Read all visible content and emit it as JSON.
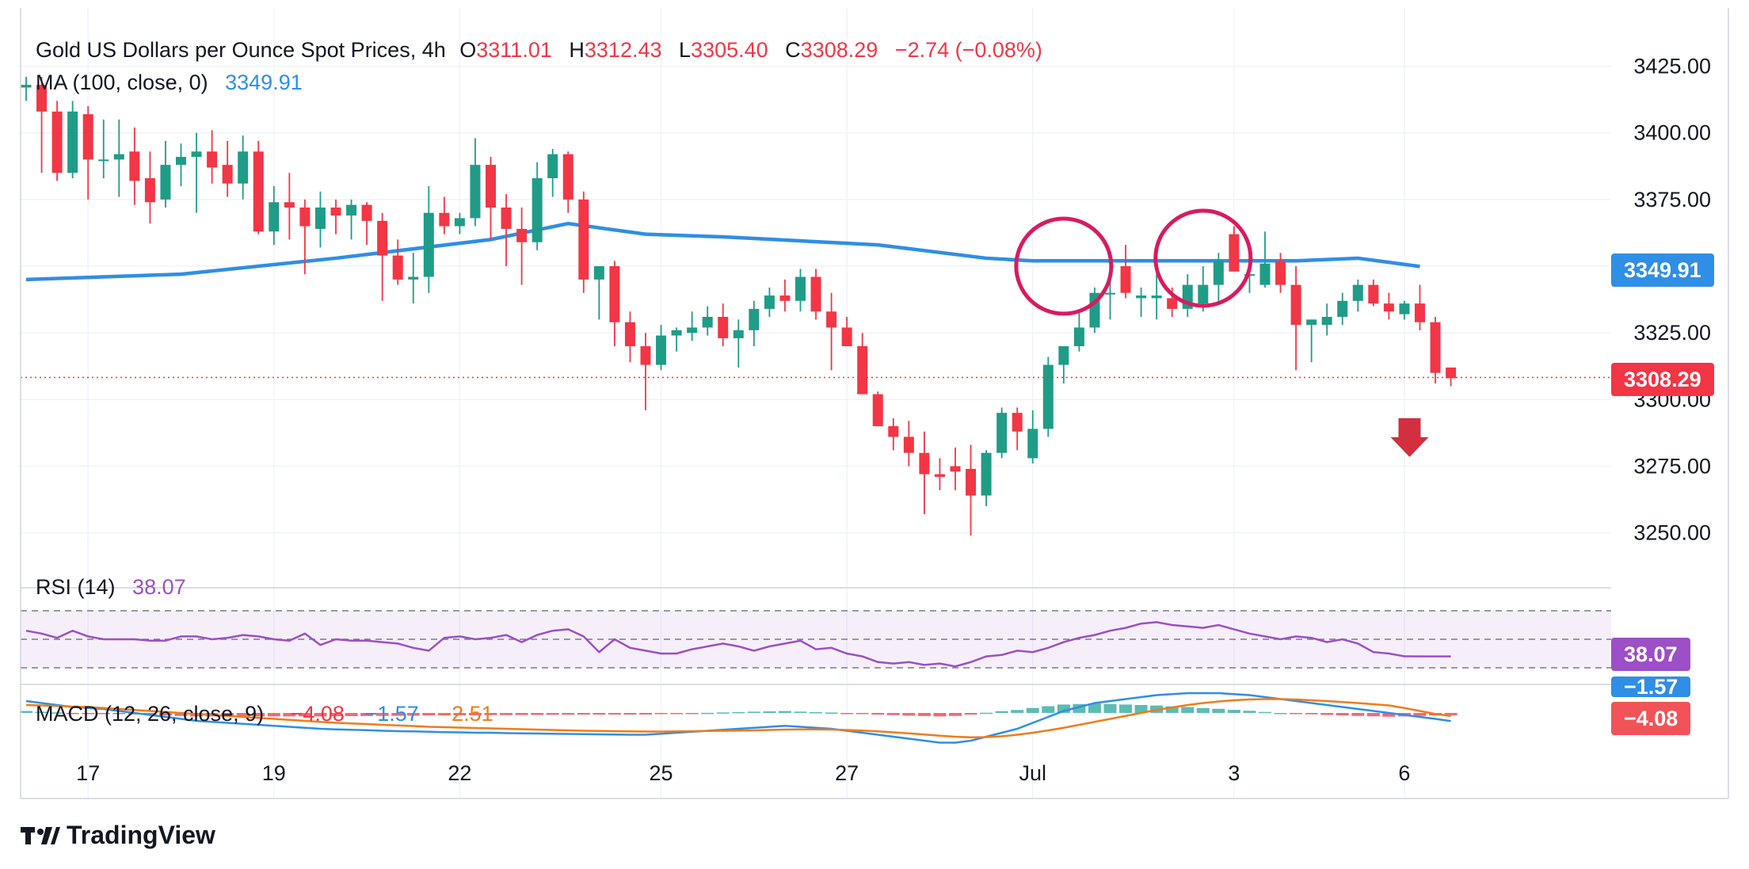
{
  "header": {
    "symbol": "Gold US Dollars per Ounce Spot Prices, 4h",
    "o_label": "O",
    "o_value": "3311.01",
    "h_label": "H",
    "h_value": "3312.43",
    "l_label": "L",
    "l_value": "3305.40",
    "c_label": "C",
    "c_value": "3308.29",
    "change": "−2.74 (−0.08%)"
  },
  "ma_legend": {
    "label": "MA (100, close, 0)",
    "value": "3349.91"
  },
  "rsi_legend": {
    "label": "RSI (14)",
    "value": "38.07"
  },
  "macd_legend": {
    "label": "MACD (12, 26, close, 9)",
    "macd": "−4.08",
    "signal": "−1.57",
    "hist": "−2.51"
  },
  "badges": {
    "ma": "3349.91",
    "price": "3308.29",
    "rsi": "38.07",
    "macd_signal": "−1.57",
    "macd": "−4.08"
  },
  "brand": "TradingView",
  "colors": {
    "up": "#26a69a",
    "upBody": "#1f9c87",
    "down": "#f23645",
    "ma": "#2f8ee5",
    "rsi": "#9c4fc6",
    "macd": "#2f8ee5",
    "signal": "#f07c1a",
    "circle": "#d81b60",
    "arrow": "#d32f3f"
  },
  "chart_data": [
    {
      "type": "candlestick",
      "title": "Gold US Dollars per Ounce Spot Prices, 4h",
      "x_ticks": [
        {
          "label": "17",
          "index": 4
        },
        {
          "label": "19",
          "index": 16
        },
        {
          "label": "22",
          "index": 28
        },
        {
          "label": "25",
          "index": 41
        },
        {
          "label": "27",
          "index": 53
        },
        {
          "label": "Jul",
          "index": 65
        },
        {
          "label": "3",
          "index": 78
        },
        {
          "label": "6",
          "index": 89
        }
      ],
      "y_ticks": [
        3250,
        3275,
        3300,
        3325,
        3350,
        3375,
        3400,
        3425
      ],
      "ylim": [
        3230,
        3432
      ],
      "last_price": 3308.29,
      "candles": [
        [
          3417,
          3421,
          3412,
          3418
        ],
        [
          3418,
          3421,
          3385,
          3408
        ],
        [
          3408,
          3412,
          3382,
          3385
        ],
        [
          3385,
          3412,
          3383,
          3408
        ],
        [
          3407,
          3410,
          3375,
          3390
        ],
        [
          3390,
          3405,
          3383,
          3390
        ],
        [
          3390,
          3405,
          3376,
          3392
        ],
        [
          3393,
          3402,
          3373,
          3382
        ],
        [
          3383,
          3393,
          3366,
          3374
        ],
        [
          3375,
          3397,
          3372,
          3388
        ],
        [
          3388,
          3396,
          3380,
          3391
        ],
        [
          3391,
          3400,
          3370,
          3393
        ],
        [
          3393,
          3401,
          3381,
          3387
        ],
        [
          3388,
          3397,
          3376,
          3381
        ],
        [
          3381,
          3399,
          3375,
          3393
        ],
        [
          3393,
          3397,
          3362,
          3363
        ],
        [
          3363,
          3380,
          3358,
          3374
        ],
        [
          3374,
          3385,
          3360,
          3372
        ],
        [
          3372,
          3375,
          3347,
          3365
        ],
        [
          3364,
          3378,
          3357,
          3372
        ],
        [
          3372,
          3375,
          3362,
          3369
        ],
        [
          3369,
          3375,
          3360,
          3373
        ],
        [
          3373,
          3374,
          3358,
          3367
        ],
        [
          3367,
          3370,
          3337,
          3354
        ],
        [
          3354,
          3360,
          3343,
          3345
        ],
        [
          3345,
          3355,
          3336,
          3346
        ],
        [
          3346,
          3380,
          3340,
          3370
        ],
        [
          3370,
          3376,
          3362,
          3365
        ],
        [
          3365,
          3370,
          3362,
          3368
        ],
        [
          3368,
          3398,
          3365,
          3388
        ],
        [
          3388,
          3391,
          3360,
          3372
        ],
        [
          3372,
          3377,
          3350,
          3364
        ],
        [
          3364,
          3372,
          3343,
          3359
        ],
        [
          3359,
          3389,
          3356,
          3383
        ],
        [
          3383,
          3394,
          3376,
          3392
        ],
        [
          3392,
          3393,
          3370,
          3375
        ],
        [
          3375,
          3378,
          3340,
          3345
        ],
        [
          3345,
          3350,
          3330,
          3350
        ],
        [
          3350,
          3352,
          3320,
          3329
        ],
        [
          3329,
          3333,
          3314,
          3320
        ],
        [
          3320,
          3325,
          3296,
          3313
        ],
        [
          3313,
          3328,
          3311,
          3324
        ],
        [
          3324,
          3327,
          3318,
          3326
        ],
        [
          3325,
          3333,
          3322,
          3327
        ],
        [
          3327,
          3335,
          3324,
          3331
        ],
        [
          3331,
          3336,
          3320,
          3323
        ],
        [
          3323,
          3330,
          3312,
          3326
        ],
        [
          3326,
          3337,
          3320,
          3334
        ],
        [
          3334,
          3342,
          3331,
          3339
        ],
        [
          3339,
          3345,
          3333,
          3337
        ],
        [
          3337,
          3349,
          3333,
          3346
        ],
        [
          3346,
          3349,
          3330,
          3333
        ],
        [
          3333,
          3340,
          3311,
          3327
        ],
        [
          3327,
          3331,
          3320,
          3320
        ],
        [
          3320,
          3325,
          3303,
          3302
        ],
        [
          3302,
          3303,
          3290,
          3290
        ],
        [
          3290,
          3293,
          3281,
          3286
        ],
        [
          3286,
          3292,
          3275,
          3280
        ],
        [
          3280,
          3288,
          3257,
          3272
        ],
        [
          3272,
          3278,
          3266,
          3271
        ],
        [
          3275,
          3282,
          3266,
          3273
        ],
        [
          3274,
          3283,
          3249,
          3264
        ],
        [
          3264,
          3281,
          3260,
          3280
        ],
        [
          3280,
          3297,
          3278,
          3295
        ],
        [
          3295,
          3297,
          3281,
          3288
        ],
        [
          3278,
          3296,
          3276,
          3289
        ],
        [
          3289,
          3316,
          3286,
          3313
        ],
        [
          3313,
          3318,
          3306,
          3320
        ],
        [
          3320,
          3333,
          3318,
          3327
        ],
        [
          3327,
          3342,
          3325,
          3340
        ],
        [
          3340,
          3350,
          3330,
          3340
        ],
        [
          3350,
          3358,
          3338,
          3340
        ],
        [
          3338,
          3342,
          3331,
          3339
        ],
        [
          3338,
          3347,
          3330,
          3339
        ],
        [
          3338,
          3342,
          3331,
          3334
        ],
        [
          3334,
          3347,
          3331,
          3343
        ],
        [
          3336,
          3350,
          3333,
          3343
        ],
        [
          3343,
          3355,
          3337,
          3352
        ],
        [
          3362,
          3365,
          3348,
          3348
        ],
        [
          3347,
          3356,
          3340,
          3347
        ],
        [
          3343,
          3363,
          3342,
          3351
        ],
        [
          3352,
          3355,
          3340,
          3343
        ],
        [
          3343,
          3350,
          3311,
          3328
        ],
        [
          3328,
          3330,
          3314,
          3330
        ],
        [
          3328,
          3336,
          3324,
          3331
        ],
        [
          3331,
          3340,
          3328,
          3337
        ],
        [
          3337,
          3345,
          3333,
          3343
        ],
        [
          3343,
          3345,
          3335,
          3336
        ],
        [
          3336,
          3340,
          3330,
          3333
        ],
        [
          3332,
          3337,
          3330,
          3336
        ],
        [
          3336,
          3343,
          3326,
          3329
        ],
        [
          3329,
          3331,
          3306,
          3310
        ],
        [
          3312,
          3312,
          3305,
          3308
        ]
      ],
      "ma": [
        {
          "i": 0,
          "v": 3345
        },
        {
          "i": 10,
          "v": 3347
        },
        {
          "i": 20,
          "v": 3353
        },
        {
          "i": 30,
          "v": 3360
        },
        {
          "i": 35,
          "v": 3366
        },
        {
          "i": 40,
          "v": 3362
        },
        {
          "i": 45,
          "v": 3361
        },
        {
          "i": 55,
          "v": 3358
        },
        {
          "i": 62,
          "v": 3353
        },
        {
          "i": 65,
          "v": 3352
        },
        {
          "i": 75,
          "v": 3352
        },
        {
          "i": 82,
          "v": 3352
        },
        {
          "i": 86,
          "v": 3353
        },
        {
          "i": 90,
          "v": 3349.91
        }
      ],
      "annotations": [
        {
          "type": "circle",
          "index": 67,
          "price": 3350
        },
        {
          "type": "circle",
          "index": 76,
          "price": 3353
        },
        {
          "type": "arrow-down",
          "index": 90,
          "price": 3285
        }
      ]
    },
    {
      "type": "line",
      "title": "RSI (14)",
      "ylim": [
        20,
        80
      ],
      "bands": [
        30,
        50,
        70
      ],
      "values": [
        56,
        54,
        51,
        56,
        52,
        50,
        50,
        50,
        49,
        49,
        52,
        52,
        50,
        51,
        53,
        52,
        50,
        49,
        54,
        46,
        50,
        49,
        49,
        48,
        47,
        44,
        42,
        51,
        52,
        50,
        51,
        53,
        48,
        53,
        56,
        57,
        52,
        41,
        50,
        44,
        42,
        40,
        40,
        43,
        45,
        47,
        45,
        42,
        45,
        47,
        49,
        43,
        44,
        40,
        38,
        34,
        33,
        34,
        32,
        33,
        31,
        34,
        38,
        39,
        42,
        41,
        44,
        48,
        51,
        53,
        56,
        58,
        61,
        62,
        60,
        59,
        58,
        60,
        57,
        54,
        52,
        50,
        52,
        51,
        48,
        50,
        47,
        41,
        40,
        38.07,
        38,
        38,
        38
      ]
    },
    {
      "type": "macd",
      "title": "MACD (12, 26, close, 9)",
      "macd": [
        6,
        5,
        4,
        3,
        2.5,
        2,
        1,
        0,
        -1,
        -2,
        -3,
        -4,
        -4.5,
        -5,
        -5.5,
        -6,
        -6.5,
        -7,
        -7.5,
        -8,
        -8.3,
        -8.5,
        -8.7,
        -9,
        -9.2,
        -9.3,
        -9.5,
        -9.7,
        -9.8,
        -10,
        -10,
        -10.2,
        -10.3,
        -10.4,
        -10.5,
        -10.6,
        -10.7,
        -10.8,
        -10.9,
        -11,
        -11,
        -10.5,
        -10,
        -9.5,
        -9,
        -8.5,
        -8,
        -7.5,
        -7,
        -6.5,
        -7,
        -7.5,
        -8,
        -9,
        -10,
        -11,
        -12,
        -13,
        -14,
        -15,
        -15,
        -14,
        -12,
        -10,
        -8,
        -5,
        -2,
        1,
        3,
        5,
        6,
        7,
        8,
        9,
        9.5,
        10,
        10,
        10,
        9.5,
        9,
        8,
        7,
        6,
        5,
        4,
        3,
        2,
        1,
        0,
        -1,
        -2,
        -3,
        -4.08
      ],
      "signal": [
        4,
        3.8,
        3.5,
        3.2,
        3,
        2.5,
        2,
        1.5,
        1,
        0.5,
        0,
        -0.5,
        -1,
        -1.5,
        -2,
        -2.5,
        -3,
        -3.5,
        -4,
        -4.5,
        -5,
        -5.3,
        -5.6,
        -6,
        -6.3,
        -6.6,
        -7,
        -7.2,
        -7.4,
        -7.6,
        -7.8,
        -8,
        -8.2,
        -8.4,
        -8.6,
        -8.8,
        -9,
        -9.1,
        -9.2,
        -9.3,
        -9.4,
        -9.4,
        -9.3,
        -9.2,
        -9.1,
        -9,
        -8.9,
        -8.8,
        -8.6,
        -8.4,
        -8.3,
        -8.3,
        -8.4,
        -8.6,
        -8.9,
        -9.3,
        -9.8,
        -10.3,
        -10.9,
        -11.5,
        -12,
        -12.3,
        -12.2,
        -11.8,
        -11,
        -10,
        -8.8,
        -7.5,
        -6,
        -4.5,
        -3,
        -1.5,
        0,
        1.5,
        2.8,
        4,
        5,
        5.8,
        6.4,
        6.8,
        7,
        7,
        6.8,
        6.4,
        6,
        5.5,
        5,
        4.4,
        3.8,
        2.5,
        1,
        -0.5,
        -1.57
      ]
    }
  ]
}
